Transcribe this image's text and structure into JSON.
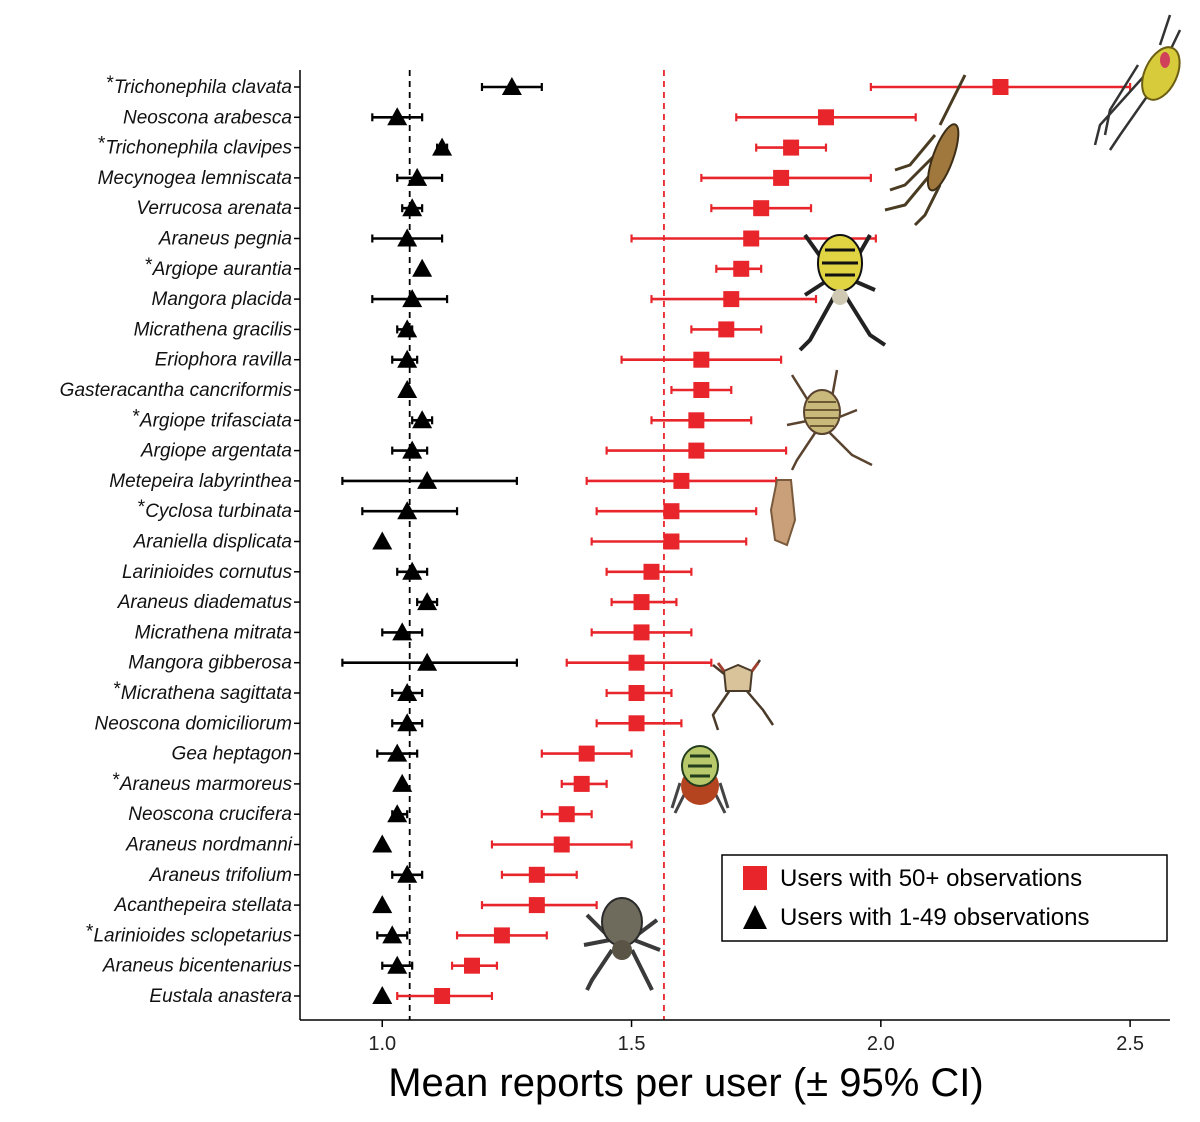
{
  "chart_data": {
    "type": "scatter",
    "orientation": "horizontal",
    "xlabel": "Mean reports per user (± 95% CI)",
    "ylabel": "",
    "xlim": [
      0.835,
      2.58
    ],
    "xticks": [
      1.0,
      1.5,
      2.0,
      2.5
    ],
    "xtick_labels": [
      "1.0",
      "1.5",
      "2.0",
      "2.5"
    ],
    "reference_lines": [
      {
        "series": "Users with 1-49 observations",
        "x": 1.055,
        "color": "#000000"
      },
      {
        "series": "Users with 50+ observations",
        "x": 1.565,
        "color": "#e8252b"
      }
    ],
    "legend": {
      "position": "bottom-right",
      "entries": [
        {
          "label": "Users with 50+ observations",
          "marker": "square",
          "color": "#e8252b"
        },
        {
          "label": "Users with 1-49 observations",
          "marker": "triangle",
          "color": "#000000"
        }
      ]
    },
    "categories": [
      {
        "asterisk": "*",
        "name": "Trichonephila clavata"
      },
      {
        "asterisk": "",
        "name": "Neoscona arabesca"
      },
      {
        "asterisk": "*",
        "name": "Trichonephila clavipes"
      },
      {
        "asterisk": "",
        "name": "Mecynogea lemniscata"
      },
      {
        "asterisk": "",
        "name": "Verrucosa arenata"
      },
      {
        "asterisk": "",
        "name": "Araneus pegnia"
      },
      {
        "asterisk": "*",
        "name": "Argiope aurantia"
      },
      {
        "asterisk": "",
        "name": "Mangora placida"
      },
      {
        "asterisk": "",
        "name": "Micrathena gracilis"
      },
      {
        "asterisk": "",
        "name": "Eriophora ravilla"
      },
      {
        "asterisk": "",
        "name": "Gasteracantha cancriformis"
      },
      {
        "asterisk": "*",
        "name": "Argiope trifasciata"
      },
      {
        "asterisk": "",
        "name": "Argiope argentata"
      },
      {
        "asterisk": "",
        "name": "Metepeira labyrinthea"
      },
      {
        "asterisk": "*",
        "name": "Cyclosa turbinata"
      },
      {
        "asterisk": "",
        "name": "Araniella displicata"
      },
      {
        "asterisk": "",
        "name": "Larinioides cornutus"
      },
      {
        "asterisk": "",
        "name": "Araneus diadematus"
      },
      {
        "asterisk": "",
        "name": "Micrathena mitrata"
      },
      {
        "asterisk": "",
        "name": "Mangora gibberosa"
      },
      {
        "asterisk": "*",
        "name": "Micrathena sagittata"
      },
      {
        "asterisk": "",
        "name": "Neoscona domiciliorum"
      },
      {
        "asterisk": "",
        "name": "Gea heptagon"
      },
      {
        "asterisk": "*",
        "name": "Araneus marmoreus"
      },
      {
        "asterisk": "",
        "name": "Neoscona crucifera"
      },
      {
        "asterisk": "",
        "name": "Araneus nordmanni"
      },
      {
        "asterisk": "",
        "name": "Araneus trifolium"
      },
      {
        "asterisk": "",
        "name": "Acanthepeira stellata"
      },
      {
        "asterisk": "*",
        "name": "Larinioides sclopetarius"
      },
      {
        "asterisk": "",
        "name": "Araneus bicentenarius"
      },
      {
        "asterisk": "",
        "name": "Eustala anastera"
      }
    ],
    "series": [
      {
        "name": "Users with 50+ observations",
        "marker": "square",
        "color": "#e8252b",
        "values": [
          2.24,
          1.89,
          1.82,
          1.8,
          1.76,
          1.74,
          1.72,
          1.7,
          1.69,
          1.64,
          1.64,
          1.63,
          1.63,
          1.6,
          1.58,
          1.58,
          1.54,
          1.52,
          1.52,
          1.51,
          1.51,
          1.51,
          1.41,
          1.4,
          1.37,
          1.36,
          1.31,
          1.31,
          1.24,
          1.18,
          1.12
        ],
        "ci_low": [
          1.98,
          1.71,
          1.75,
          1.64,
          1.66,
          1.5,
          1.67,
          1.54,
          1.62,
          1.48,
          1.58,
          1.54,
          1.45,
          1.41,
          1.43,
          1.42,
          1.45,
          1.46,
          1.42,
          1.37,
          1.45,
          1.43,
          1.32,
          1.36,
          1.32,
          1.22,
          1.24,
          1.2,
          1.15,
          1.14,
          1.03
        ],
        "ci_high": [
          2.5,
          2.07,
          1.89,
          1.98,
          1.86,
          1.99,
          1.76,
          1.87,
          1.76,
          1.8,
          1.7,
          1.74,
          1.81,
          1.79,
          1.75,
          1.73,
          1.62,
          1.59,
          1.62,
          1.66,
          1.58,
          1.6,
          1.5,
          1.45,
          1.42,
          1.5,
          1.39,
          1.43,
          1.33,
          1.23,
          1.22
        ]
      },
      {
        "name": "Users with 1-49 observations",
        "marker": "triangle",
        "color": "#000000",
        "values": [
          1.26,
          1.03,
          1.12,
          1.07,
          1.06,
          1.05,
          1.08,
          1.06,
          1.05,
          1.05,
          1.05,
          1.08,
          1.06,
          1.09,
          1.05,
          1.0,
          1.06,
          1.09,
          1.04,
          1.09,
          1.05,
          1.05,
          1.03,
          1.04,
          1.03,
          1.0,
          1.05,
          1.0,
          1.02,
          1.03,
          1.0
        ],
        "ci_low": [
          1.2,
          0.98,
          1.11,
          1.03,
          1.04,
          0.98,
          1.08,
          0.98,
          1.03,
          1.02,
          1.05,
          1.06,
          1.02,
          0.92,
          0.96,
          1.0,
          1.03,
          1.07,
          1.0,
          0.92,
          1.02,
          1.02,
          0.99,
          1.04,
          1.02,
          1.0,
          1.02,
          1.0,
          0.99,
          1.0,
          1.0
        ],
        "ci_high": [
          1.32,
          1.08,
          1.13,
          1.12,
          1.08,
          1.12,
          1.08,
          1.13,
          1.06,
          1.07,
          1.05,
          1.1,
          1.09,
          1.27,
          1.15,
          1.0,
          1.09,
          1.11,
          1.08,
          1.27,
          1.08,
          1.08,
          1.07,
          1.04,
          1.05,
          1.0,
          1.08,
          1.0,
          1.05,
          1.06,
          1.0
        ]
      }
    ]
  }
}
